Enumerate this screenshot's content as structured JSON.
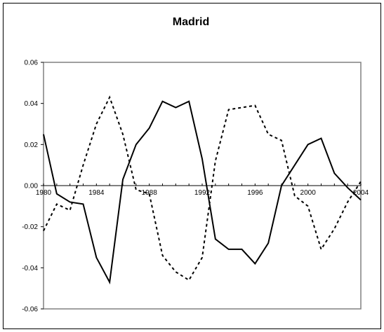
{
  "chart_data": {
    "type": "line",
    "title": "Madrid",
    "xlabel": "",
    "ylabel": "",
    "xlim": [
      1980,
      2004
    ],
    "ylim": [
      -0.06,
      0.06
    ],
    "x_ticks": [
      1980,
      1984,
      1988,
      1992,
      1996,
      2000,
      2004
    ],
    "y_ticks": [
      0.06,
      0.04,
      0.02,
      0.0,
      -0.02,
      -0.04,
      -0.06
    ],
    "y_tick_labels": [
      "0.06",
      "0.04",
      "0.02",
      "0.00",
      "-0.02",
      "-0.04",
      "-0.06"
    ],
    "grid": false,
    "legend": "none",
    "series": [
      {
        "style": "solid",
        "color": "#000000",
        "x": [
          1980,
          1981,
          1982,
          1983,
          1984,
          1985,
          1986,
          1987,
          1988,
          1989,
          1990,
          1991,
          1992,
          1993,
          1994,
          1995,
          1996,
          1997,
          1998,
          1999,
          2000,
          2001,
          2002,
          2003,
          2004
        ],
        "values": [
          0.025,
          -0.004,
          -0.008,
          -0.009,
          -0.035,
          -0.047,
          0.003,
          0.02,
          0.028,
          0.041,
          0.038,
          0.041,
          0.013,
          -0.026,
          -0.031,
          -0.031,
          -0.038,
          -0.028,
          0.0,
          0.01,
          0.02,
          0.023,
          0.006,
          -0.001,
          -0.007
        ]
      },
      {
        "style": "dashed",
        "color": "#000000",
        "x": [
          1980,
          1981,
          1982,
          1983,
          1984,
          1985,
          1986,
          1987,
          1988,
          1989,
          1990,
          1991,
          1992,
          1993,
          1994,
          1995,
          1996,
          1997,
          1998,
          1999,
          2000,
          2001,
          2002,
          2003,
          2004
        ],
        "values": [
          -0.022,
          -0.009,
          -0.012,
          0.01,
          0.03,
          0.043,
          0.025,
          -0.002,
          -0.004,
          -0.034,
          -0.042,
          -0.046,
          -0.035,
          0.012,
          0.037,
          0.038,
          0.039,
          0.025,
          0.022,
          -0.005,
          -0.01,
          -0.031,
          -0.021,
          -0.008,
          0.002
        ]
      }
    ]
  }
}
